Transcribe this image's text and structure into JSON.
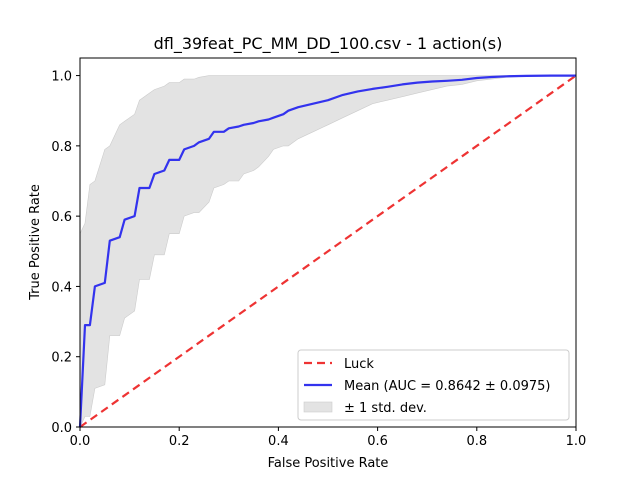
{
  "chart_data": {
    "type": "line",
    "title": "dfl_39feat_PC_MM_DD_100.csv - 1 action(s)",
    "xlabel": "False Positive Rate",
    "ylabel": "True Positive Rate",
    "xlim": [
      0,
      1
    ],
    "ylim": [
      0,
      1.05
    ],
    "x_ticks": [
      "0.0",
      "0.2",
      "0.4",
      "0.6",
      "0.8",
      "1.0"
    ],
    "y_ticks": [
      "0.0",
      "0.2",
      "0.4",
      "0.6",
      "0.8",
      "1.0"
    ],
    "grid": false,
    "legend_position": "lower-right",
    "colors": {
      "luck": "#ee3333",
      "mean": "#3333ee",
      "band": "#e3e3e3",
      "band_edge": "#cccccc"
    },
    "series": [
      {
        "name": "Luck",
        "style": "dashed",
        "x": [
          0,
          1
        ],
        "y": [
          0,
          1
        ]
      },
      {
        "name": "Mean (AUC = 0.8642 ± 0.0975)",
        "style": "solid",
        "x": [
          0,
          0.01,
          0.02,
          0.03,
          0.05,
          0.06,
          0.08,
          0.09,
          0.11,
          0.12,
          0.14,
          0.15,
          0.17,
          0.18,
          0.2,
          0.21,
          0.23,
          0.24,
          0.26,
          0.27,
          0.29,
          0.3,
          0.32,
          0.33,
          0.35,
          0.36,
          0.38,
          0.39,
          0.41,
          0.42,
          0.44,
          0.47,
          0.5,
          0.53,
          0.56,
          0.59,
          0.62,
          0.65,
          0.68,
          0.71,
          0.74,
          0.77,
          0.8,
          0.83,
          0.86,
          0.9,
          0.95,
          1.0
        ],
        "y": [
          0,
          0.29,
          0.29,
          0.4,
          0.41,
          0.53,
          0.54,
          0.59,
          0.6,
          0.68,
          0.68,
          0.72,
          0.73,
          0.76,
          0.76,
          0.79,
          0.8,
          0.81,
          0.82,
          0.84,
          0.84,
          0.85,
          0.855,
          0.86,
          0.865,
          0.87,
          0.875,
          0.88,
          0.89,
          0.9,
          0.91,
          0.92,
          0.93,
          0.945,
          0.955,
          0.962,
          0.968,
          0.975,
          0.98,
          0.983,
          0.985,
          0.988,
          0.993,
          0.996,
          0.998,
          0.999,
          1.0,
          1.0
        ]
      },
      {
        "name": "± 1 std. dev.",
        "style": "band",
        "x": [
          0,
          0.01,
          0.02,
          0.03,
          0.05,
          0.06,
          0.08,
          0.09,
          0.11,
          0.12,
          0.14,
          0.15,
          0.17,
          0.18,
          0.2,
          0.21,
          0.23,
          0.24,
          0.26,
          0.27,
          0.29,
          0.3,
          0.32,
          0.33,
          0.35,
          0.36,
          0.38,
          0.39,
          0.41,
          0.42,
          0.44,
          0.47,
          0.5,
          0.53,
          0.56,
          0.59,
          0.62,
          0.65,
          0.68,
          0.71,
          0.74,
          0.77,
          0.8,
          0.83,
          0.86,
          0.9,
          0.95,
          1.0
        ],
        "lower": [
          0,
          0.03,
          0.03,
          0.11,
          0.12,
          0.26,
          0.26,
          0.31,
          0.33,
          0.42,
          0.42,
          0.49,
          0.49,
          0.55,
          0.55,
          0.6,
          0.61,
          0.61,
          0.64,
          0.68,
          0.69,
          0.7,
          0.7,
          0.72,
          0.73,
          0.74,
          0.77,
          0.79,
          0.8,
          0.8,
          0.82,
          0.84,
          0.86,
          0.88,
          0.9,
          0.92,
          0.93,
          0.94,
          0.95,
          0.96,
          0.97,
          0.975,
          0.985,
          0.99,
          0.995,
          0.998,
          1.0,
          1.0
        ],
        "upper": [
          0.55,
          0.58,
          0.69,
          0.7,
          0.79,
          0.8,
          0.86,
          0.87,
          0.89,
          0.93,
          0.95,
          0.96,
          0.97,
          0.98,
          0.98,
          0.99,
          0.99,
          0.995,
          1.0,
          1.0,
          1.0,
          1.0,
          1.0,
          1.0,
          1.0,
          1.0,
          1.0,
          1.0,
          1.0,
          1.0,
          1.0,
          1.0,
          1.0,
          1.0,
          1.0,
          1.0,
          1.0,
          1.0,
          1.0,
          1.0,
          1.0,
          1.0,
          1.0,
          1.0,
          1.0,
          1.0,
          1.0,
          1.0
        ]
      }
    ]
  }
}
